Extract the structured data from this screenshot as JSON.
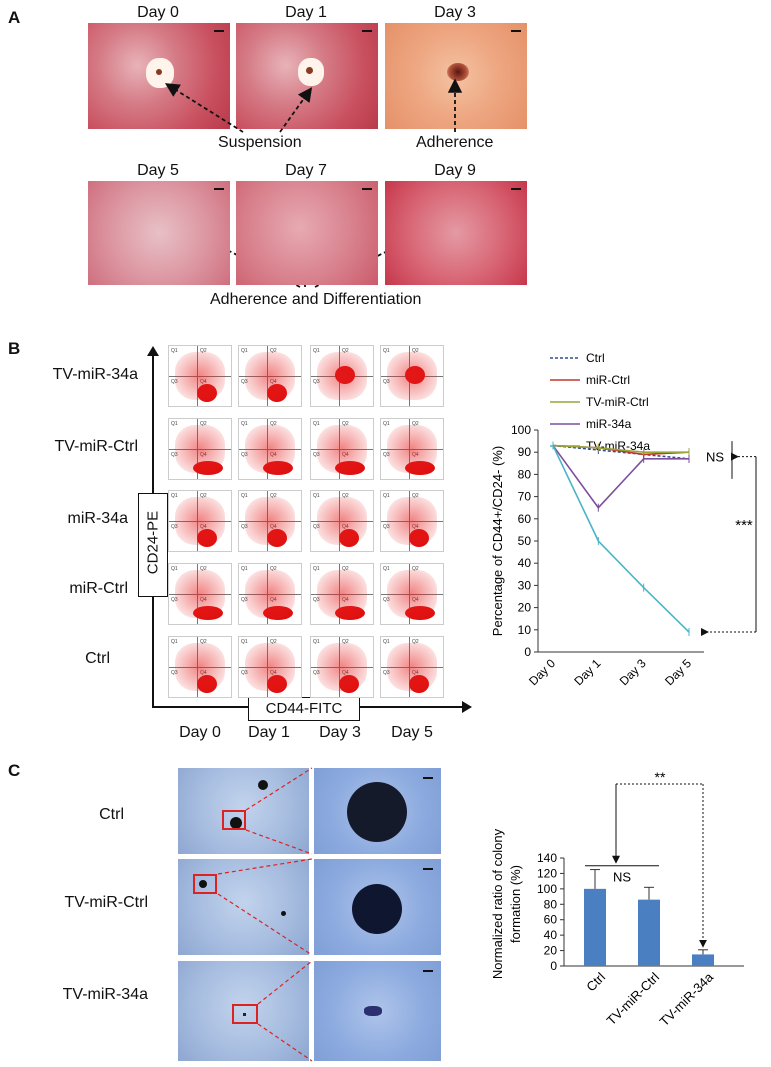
{
  "panelA": {
    "label": "A",
    "days_top": [
      "Day 0",
      "Day 1",
      "Day 3"
    ],
    "days_bottom": [
      "Day 5",
      "Day 7",
      "Day 9"
    ],
    "ann_suspension": "Suspension",
    "ann_adherence": "Adherence",
    "ann_adh_diff": "Adherence and Differentiation"
  },
  "panelB": {
    "label": "B",
    "rows": [
      "TV-miR-34a",
      "TV-miR-Ctrl",
      "miR-34a",
      "miR-Ctrl",
      "Ctrl"
    ],
    "yaxis": "CD24-PE",
    "xaxis": "CD44-FITC",
    "days": [
      "Day 0",
      "Day 1",
      "Day 3",
      "Day 5"
    ],
    "quad_labels": [
      "Q1",
      "Q2",
      "Q3",
      "Q4"
    ]
  },
  "panelC": {
    "label": "C",
    "rows": [
      "Ctrl",
      "TV-miR-Ctrl",
      "TV-miR-34a"
    ]
  },
  "chart_data": [
    {
      "type": "line",
      "ylabel": "Percentage of CD44+/CD24- (%)",
      "categories": [
        "Day 0",
        "Day 1",
        "Day 3",
        "Day 5"
      ],
      "ylim": [
        0,
        100
      ],
      "yticks": [
        "0",
        "10",
        "20",
        "30",
        "40",
        "50",
        "60",
        "70",
        "80",
        "90",
        "100"
      ],
      "legend": "top-right",
      "series": [
        {
          "name": "Ctrl",
          "color": "#2f4f8f",
          "values": [
            93,
            91,
            89,
            87
          ]
        },
        {
          "name": "miR-Ctrl",
          "color": "#c0392b",
          "values": [
            93,
            92,
            89,
            90
          ]
        },
        {
          "name": "TV-miR-Ctrl",
          "color": "#9aa63a",
          "values": [
            93,
            92,
            90,
            90
          ]
        },
        {
          "name": "miR-34a",
          "color": "#7b4f9d",
          "values": [
            93,
            65,
            87,
            87
          ]
        },
        {
          "name": "TV-miR-34a",
          "color": "#4bb3c8",
          "values": [
            93,
            50,
            29,
            9
          ]
        }
      ],
      "annotations": {
        "ns": "NS",
        "sig": "***"
      }
    },
    {
      "type": "bar",
      "ylabel": "Normalized ratio of colony formation (%)",
      "categories": [
        "Ctrl",
        "TV-miR-Ctrl",
        "TV-miR-34a"
      ],
      "values": [
        100,
        86,
        15
      ],
      "errors": [
        25,
        16,
        6
      ],
      "ylim": [
        0,
        140
      ],
      "yticks": [
        "0",
        "20",
        "40",
        "60",
        "80",
        "100",
        "120",
        "140"
      ],
      "color": "#4a7fc1",
      "annotations": {
        "ns": "NS",
        "sig": "**"
      }
    }
  ]
}
